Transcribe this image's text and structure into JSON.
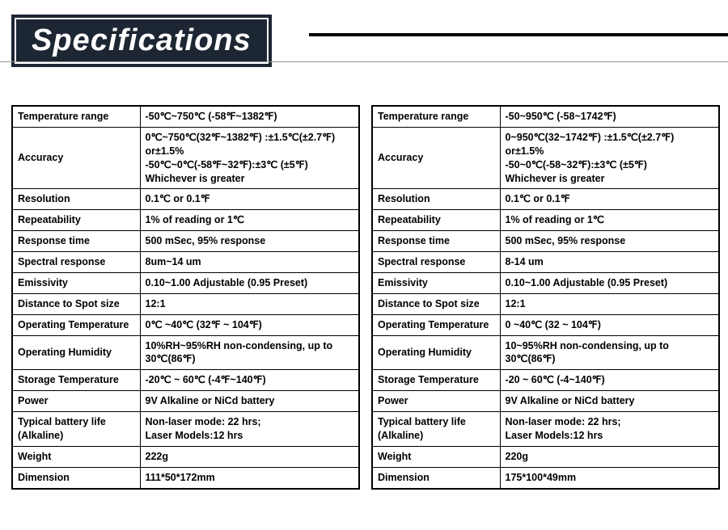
{
  "header": {
    "title": "Specifications"
  },
  "colors": {
    "title_bg": "#1d2633",
    "title_fg": "#ffffff",
    "border": "#000000",
    "page_bg": "#ffffff"
  },
  "tables": {
    "left": {
      "rows": [
        {
          "label": "Temperature range",
          "value": "-50℃~750℃ (-58℉~1382℉)"
        },
        {
          "label": "Accuracy",
          "value": "0℃~750℃(32℉~1382℉) :±1.5℃(±2.7℉) or±1.5%\n-50℃~0℃(-58℉~32℉):±3℃ (±5℉)\nWhichever is greater"
        },
        {
          "label": "Resolution",
          "value": "0.1℃ or 0.1℉"
        },
        {
          "label": "Repeatability",
          "value": "1% of reading or 1℃"
        },
        {
          "label": "Response time",
          "value": "500 mSec, 95% response"
        },
        {
          "label": "Spectral response",
          "value": "8um~14 um"
        },
        {
          "label": "Emissivity",
          "value": "0.10~1.00 Adjustable (0.95 Preset)"
        },
        {
          "label": "Distance to Spot size",
          "value": "12:1"
        },
        {
          "label": "Operating Temperature",
          "value": "0℃ ~40℃ (32℉ ~ 104℉)"
        },
        {
          "label": "Operating Humidity",
          "value": "10%RH~95%RH non-condensing, up to 30℃(86℉)"
        },
        {
          "label": "Storage Temperature",
          "value": "-20℃ ~ 60℃ (-4℉~140℉)"
        },
        {
          "label": "Power",
          "value": "9V Alkaline or NiCd battery"
        },
        {
          "label": "Typical battery life (Alkaline)",
          "value": "Non-laser mode: 22 hrs;\nLaser Models:12 hrs"
        },
        {
          "label": "Weight",
          "value": "222g"
        },
        {
          "label": "Dimension",
          "value": "111*50*172mm"
        }
      ]
    },
    "right": {
      "rows": [
        {
          "label": "Temperature range",
          "value": "-50~950℃ (-58~1742℉)"
        },
        {
          "label": "Accuracy",
          "value": "0~950℃(32~1742℉) :±1.5℃(±2.7℉) or±1.5%\n-50~0℃(-58~32℉):±3℃ (±5℉)\nWhichever is greater"
        },
        {
          "label": "Resolution",
          "value": "0.1℃ or 0.1℉"
        },
        {
          "label": "Repeatability",
          "value": "1% of reading or 1℃"
        },
        {
          "label": "Response time",
          "value": "500 mSec, 95% response"
        },
        {
          "label": "Spectral response",
          "value": "8-14 um"
        },
        {
          "label": "Emissivity",
          "value": "0.10~1.00 Adjustable (0.95 Preset)"
        },
        {
          "label": "Distance to Spot size",
          "value": "12:1"
        },
        {
          "label": "Operating Temperature",
          "value": "0 ~40℃ (32 ~ 104℉)"
        },
        {
          "label": "Operating Humidity",
          "value": "10~95%RH non-condensing, up to 30℃(86℉)"
        },
        {
          "label": "Storage Temperature",
          "value": "-20 ~ 60℃ (-4~140℉)"
        },
        {
          "label": "Power",
          "value": "9V Alkaline or NiCd battery"
        },
        {
          "label": "Typical battery life (Alkaline)",
          "value": "Non-laser mode: 22 hrs;\nLaser Models:12 hrs"
        },
        {
          "label": "Weight",
          "value": "220g"
        },
        {
          "label": "Dimension",
          "value": "175*100*49mm"
        }
      ]
    }
  }
}
